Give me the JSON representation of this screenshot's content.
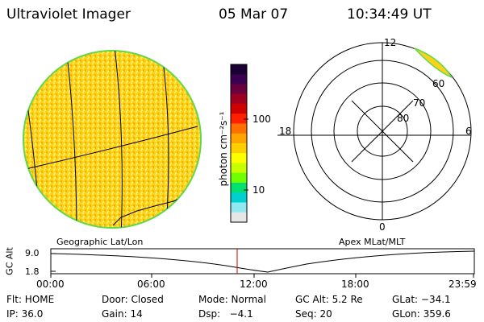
{
  "header": {
    "instrument": "Ultraviolet Imager",
    "date": "05 Mar 07",
    "time": "10:34:49 UT"
  },
  "left_panel": {
    "caption": "Geographic Lat/Lon"
  },
  "right_panel": {
    "caption": "Apex MLat/MLT",
    "mlt_labels": {
      "top": "12",
      "bottom": "0",
      "left": "18",
      "right": "6"
    },
    "mlat_labels": [
      "60",
      "70",
      "80"
    ]
  },
  "colorbar": {
    "label": "photon cm⁻²s⁻¹",
    "ticks": [
      "100",
      "10"
    ],
    "colors": [
      "#1a0033",
      "#3a0052",
      "#6a0040",
      "#a00020",
      "#d00000",
      "#ff2000",
      "#ff7000",
      "#ffa500",
      "#ffd000",
      "#ffff00",
      "#c8ff00",
      "#70ff00",
      "#00e070",
      "#00d0d0",
      "#90e8f0",
      "#e6e6e6"
    ]
  },
  "alt_strip": {
    "ylabel": "GC Alt",
    "ytick_top": "9.0",
    "ytick_bottom": "1.8",
    "xticks": [
      "00:00",
      "06:00",
      "12:00",
      "18:00",
      "23:59"
    ],
    "current_time_hours": 10.58
  },
  "info": {
    "row1": [
      "Flt: HOME",
      "Door: Closed",
      "Mode: Normal",
      "GC Alt: 5.2 Re",
      "GLat: −34.1"
    ],
    "row2": [
      "IP: 36.0",
      "Gain: 14",
      "Dsp:   −4.1",
      "Seq: 20",
      "GLon: 359.6"
    ]
  },
  "colors": {
    "disk_fill": "#ffd21a",
    "disk_edge": "#5fd84a",
    "time_marker": "#d00000"
  }
}
